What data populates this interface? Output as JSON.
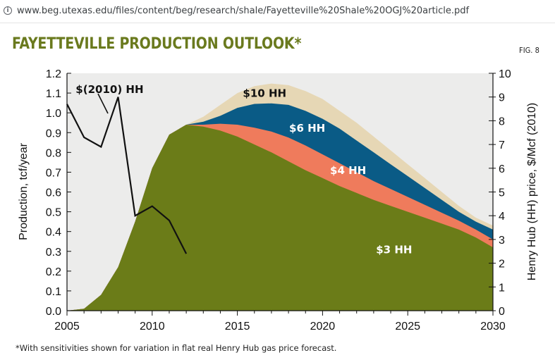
{
  "browser": {
    "url": "www.beg.utexas.edu/files/content/beg/research/shale/Fayetteville%20Shale%20OGJ%20article.pdf",
    "info_icon": "info-icon"
  },
  "figure": {
    "title": "FAYETTEVILLE PRODUCTION OUTLOOK*",
    "fig_label": "FIG. 8",
    "footnote": "*With sensitivities shown for variation in flat real Henry Hub gas price forecast."
  },
  "chart_data": {
    "type": "area",
    "xlabel": "",
    "ylabel": "Production, tcf/year",
    "y2label": "Henry Hub (HH) price, $/Mcf (2010)",
    "xlim": [
      2005,
      2030
    ],
    "ylim": [
      0,
      1.2
    ],
    "y2lim": [
      0,
      10
    ],
    "xticks": [
      2005,
      2010,
      2015,
      2020,
      2025,
      2030
    ],
    "yticks": [
      "0.0",
      "0.1",
      "0.2",
      "0.3",
      "0.4",
      "0.5",
      "0.6",
      "0.7",
      "0.8",
      "0.9",
      "1.0",
      "1.1",
      "1.2"
    ],
    "y2ticks": [
      "0",
      "1",
      "2",
      "3",
      "4",
      "5",
      "6",
      "7",
      "8",
      "9",
      "10"
    ],
    "x": [
      2005,
      2006,
      2007,
      2008,
      2009,
      2010,
      2011,
      2012,
      2013,
      2014,
      2015,
      2016,
      2017,
      2018,
      2019,
      2020,
      2021,
      2022,
      2023,
      2024,
      2025,
      2026,
      2027,
      2028,
      2029,
      2030
    ],
    "series": [
      {
        "name": "$3 HH",
        "color": "#6b7c18",
        "values": [
          0.0,
          0.01,
          0.08,
          0.22,
          0.45,
          0.72,
          0.89,
          0.94,
          0.93,
          0.91,
          0.88,
          0.84,
          0.8,
          0.755,
          0.71,
          0.67,
          0.63,
          0.595,
          0.56,
          0.53,
          0.5,
          0.47,
          0.44,
          0.41,
          0.37,
          0.32
        ]
      },
      {
        "name": "$4 HH",
        "color": "#ef7b5c",
        "values": [
          0.0,
          0.01,
          0.08,
          0.22,
          0.45,
          0.72,
          0.89,
          0.94,
          0.94,
          0.945,
          0.94,
          0.925,
          0.905,
          0.875,
          0.835,
          0.79,
          0.745,
          0.7,
          0.655,
          0.615,
          0.575,
          0.535,
          0.495,
          0.455,
          0.41,
          0.36
        ]
      },
      {
        "name": "$6 HH",
        "color": "#0a5b86",
        "values": [
          0.0,
          0.01,
          0.08,
          0.22,
          0.45,
          0.72,
          0.89,
          0.94,
          0.955,
          0.985,
          1.025,
          1.045,
          1.048,
          1.04,
          1.01,
          0.97,
          0.92,
          0.86,
          0.8,
          0.74,
          0.68,
          0.62,
          0.56,
          0.5,
          0.45,
          0.41
        ]
      },
      {
        "name": "$10 HH",
        "color": "#e6d7b5",
        "values": [
          0.0,
          0.01,
          0.08,
          0.22,
          0.45,
          0.72,
          0.89,
          0.94,
          0.98,
          1.04,
          1.1,
          1.135,
          1.148,
          1.14,
          1.11,
          1.07,
          1.01,
          0.95,
          0.88,
          0.81,
          0.74,
          0.67,
          0.6,
          0.53,
          0.47,
          0.43
        ]
      }
    ],
    "price_series": {
      "name": "$(2010) HH",
      "color": "#111111",
      "x": [
        2005,
        2006,
        2007,
        2008,
        2009,
        2010,
        2011,
        2012
      ],
      "values": [
        8.7,
        7.3,
        6.9,
        9.0,
        4.0,
        4.4,
        3.8,
        2.4
      ]
    },
    "labels": [
      {
        "text": "$(2010) HH",
        "x": 2007.5,
        "y": 1.1,
        "color": "#111111"
      },
      {
        "text": "$10 HH",
        "x": 2016.6,
        "y": 1.08,
        "color": "#111111"
      },
      {
        "text": "$6 HH",
        "x": 2019.1,
        "y": 0.905,
        "color": "#ffffff"
      },
      {
        "text": "$4 HH",
        "x": 2021.5,
        "y": 0.69,
        "color": "#ffffff"
      },
      {
        "text": "$3 HH",
        "x": 2024.2,
        "y": 0.29,
        "color": "#ffffff"
      }
    ],
    "grid": false,
    "background": "#ececeb"
  }
}
